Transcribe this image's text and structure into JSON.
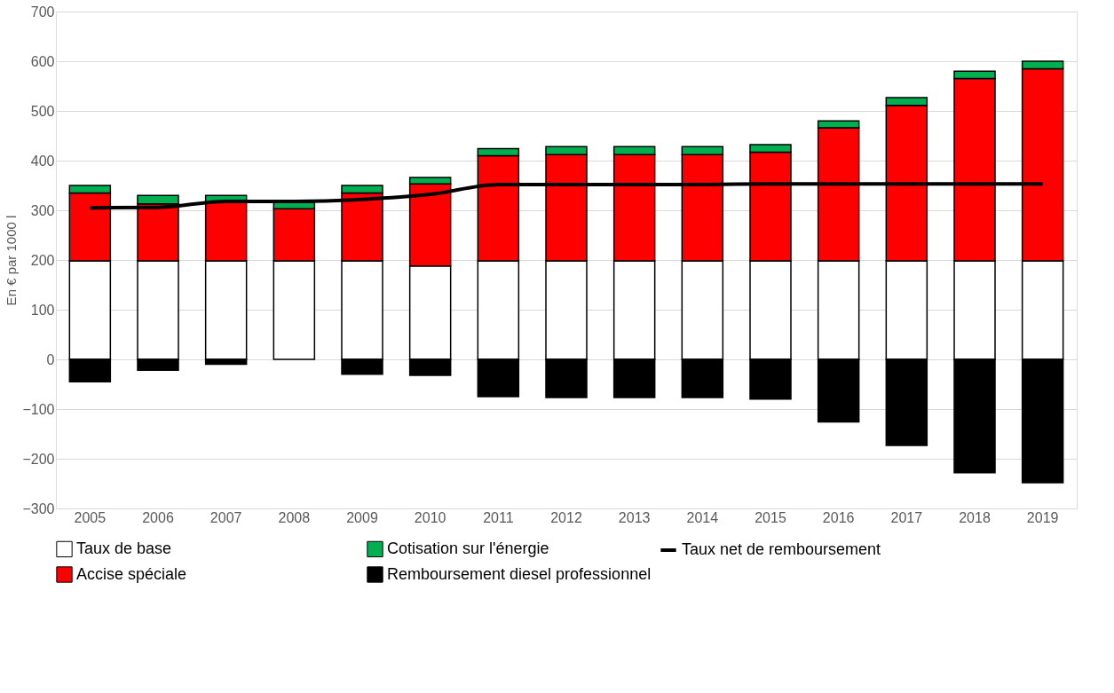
{
  "chart_data": {
    "type": "bar",
    "stacked": true,
    "ylabel": "En € par 1000 l",
    "categories": [
      "2005",
      "2006",
      "2007",
      "2008",
      "2009",
      "2010",
      "2011",
      "2012",
      "2013",
      "2014",
      "2015",
      "2016",
      "2017",
      "2018",
      "2019"
    ],
    "series": [
      {
        "name": "Taux de base",
        "color": "#ffffff",
        "values": [
          198,
          198,
          198,
          198,
          198,
          188,
          198,
          198,
          198,
          198,
          198,
          198,
          198,
          198,
          198
        ]
      },
      {
        "name": "Accise spéciale",
        "color": "#ff0000",
        "values": [
          137,
          115,
          118,
          105,
          137,
          165,
          212,
          214,
          214,
          214,
          219,
          268,
          313,
          367,
          387
        ]
      },
      {
        "name": "Cotisation sur l'énergie",
        "color": "#00b050",
        "values": [
          15,
          17,
          14,
          13,
          15,
          13,
          14,
          16,
          16,
          16,
          15,
          14,
          16,
          15,
          15
        ]
      },
      {
        "name": "Remboursement diesel professionnel",
        "color": "#000000",
        "values": [
          -45,
          -22,
          -10,
          0,
          -30,
          -32,
          -75,
          -77,
          -77,
          -77,
          -80,
          -126,
          -173,
          -228,
          -248
        ]
      },
      {
        "name": "Taux net de remboursement",
        "type": "line",
        "color": "#000000",
        "values": [
          305,
          306,
          318,
          318,
          322,
          332,
          352,
          352,
          352,
          352,
          353,
          353,
          353,
          353,
          353
        ]
      }
    ],
    "ylim": [
      -300,
      700
    ],
    "yticks": [
      -300,
      -200,
      -100,
      0,
      100,
      200,
      300,
      400,
      500,
      600,
      700
    ],
    "grid": "y",
    "legend": "bottom"
  }
}
